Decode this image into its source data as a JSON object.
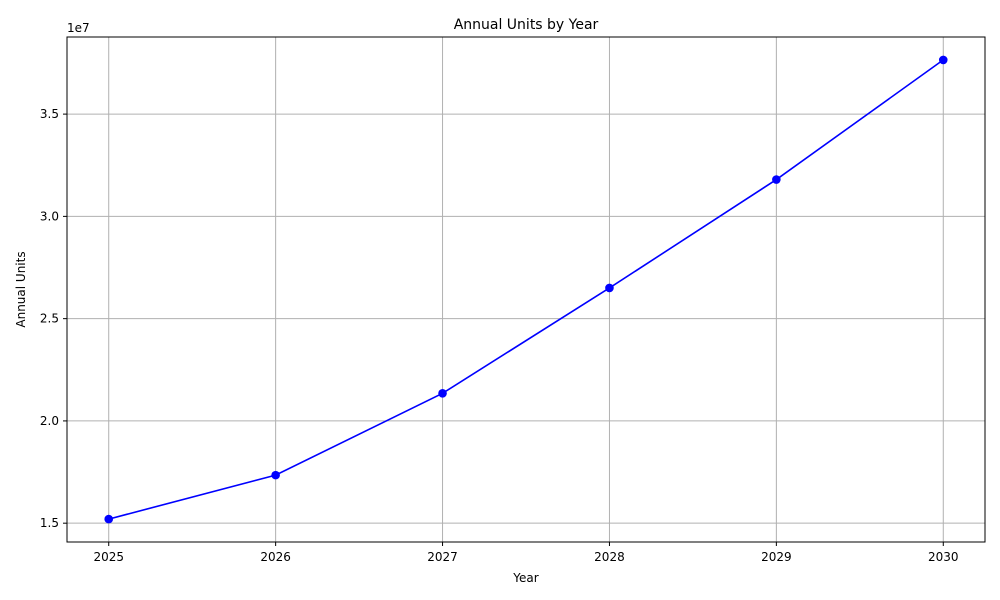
{
  "chart_data": {
    "type": "line",
    "title": "Annual Units by Year",
    "xlabel": "Year",
    "ylabel": "Annual Units",
    "y_offset_label": "1e7",
    "x": [
      2025,
      2026,
      2027,
      2028,
      2029,
      2030
    ],
    "x_tick_labels": [
      "2025",
      "2026",
      "2027",
      "2028",
      "2029",
      "2030"
    ],
    "series": [
      {
        "values": [
          15200000,
          17350000,
          21350000,
          26500000,
          31800000,
          37650000
        ],
        "color": "#0000ff",
        "marker": "circle"
      }
    ],
    "y_ticks": [
      1.5,
      2.0,
      2.5,
      3.0,
      3.5
    ],
    "y_tick_labels": [
      "1.5",
      "2.0",
      "2.5",
      "3.0",
      "3.5"
    ],
    "y_tick_scale": 10000000,
    "xlim": [
      2024.75,
      2030.25
    ],
    "ylim": [
      14080000,
      38770000
    ],
    "grid": true
  }
}
